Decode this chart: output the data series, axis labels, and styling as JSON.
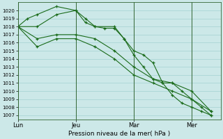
{
  "title": "",
  "xlabel": "Pression niveau de la mer( hPa )",
  "bg_color": "#cce8e8",
  "grid_color": "#99cccc",
  "line_color": "#1a6b1a",
  "vline_color": "#336633",
  "ylim": [
    1006.5,
    1021
  ],
  "yticks": [
    1007,
    1008,
    1009,
    1010,
    1011,
    1012,
    1013,
    1014,
    1015,
    1016,
    1017,
    1018,
    1019,
    1020
  ],
  "day_labels": [
    "Lun",
    "Jeu",
    "Mar",
    "Mer"
  ],
  "day_positions": [
    0,
    30,
    60,
    90
  ],
  "xlim": [
    0,
    105
  ],
  "lines": [
    {
      "x": [
        0,
        5,
        10,
        20,
        30,
        35,
        40,
        45,
        50,
        55,
        60,
        65,
        70,
        75,
        80,
        85,
        90,
        95,
        100
      ],
      "y": [
        1018,
        1019,
        1019.5,
        1020.5,
        1020,
        1019,
        1018,
        1017.8,
        1017.8,
        1016.5,
        1014.5,
        1013,
        1011.5,
        1011,
        1009.5,
        1008.5,
        1008,
        1007.5,
        1007
      ]
    },
    {
      "x": [
        0,
        10,
        20,
        30,
        35,
        40,
        50,
        55,
        60,
        65,
        70,
        75,
        80,
        85,
        90,
        95,
        100
      ],
      "y": [
        1018,
        1018,
        1019.5,
        1020,
        1018.5,
        1018,
        1018,
        1016.5,
        1015,
        1014.5,
        1013.5,
        1011,
        1011,
        1010,
        1009,
        1008,
        1007
      ]
    },
    {
      "x": [
        0,
        10,
        20,
        30,
        40,
        50,
        60,
        70,
        80,
        90,
        100
      ],
      "y": [
        1018,
        1016.5,
        1017,
        1017,
        1016.5,
        1015,
        1013,
        1011.5,
        1011,
        1010,
        1007.5
      ]
    },
    {
      "x": [
        0,
        10,
        20,
        30,
        40,
        50,
        60,
        70,
        80,
        90,
        100
      ],
      "y": [
        1018,
        1015.5,
        1016.5,
        1016.5,
        1015.5,
        1014,
        1012,
        1011,
        1010,
        1009,
        1007.5
      ]
    }
  ]
}
